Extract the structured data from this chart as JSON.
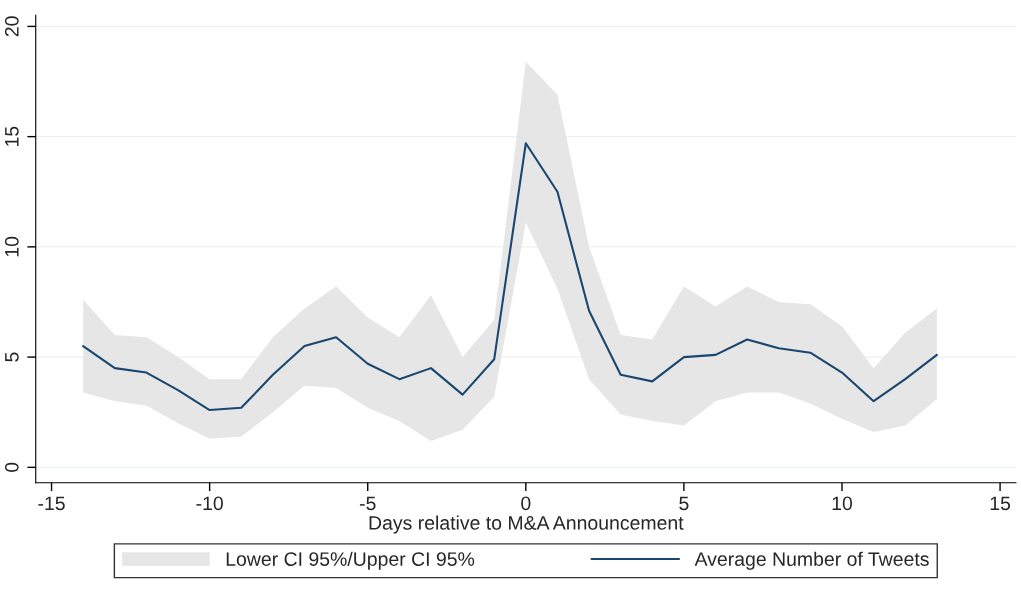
{
  "chart_data": {
    "type": "line",
    "xlabel": "Days relative to M&A Announcement",
    "annotations": [
      "Lower CI 95%/Upper CI 95%"
    ],
    "x": [
      -14,
      -13,
      -12,
      -11,
      -10,
      -9,
      -8,
      -7,
      -6,
      -5,
      -4,
      -3,
      -2,
      -1,
      0,
      1,
      2,
      3,
      4,
      5,
      6,
      7,
      8,
      9,
      10,
      11,
      12,
      13
    ],
    "series": [
      {
        "name": "Average Number of Tweets",
        "color": "#1a476f",
        "values": [
          5.5,
          4.5,
          4.3,
          3.5,
          2.6,
          2.7,
          4.2,
          5.5,
          5.9,
          4.7,
          4.0,
          4.5,
          3.3,
          4.9,
          14.7,
          12.5,
          7.1,
          4.2,
          3.9,
          5.0,
          5.1,
          5.8,
          5.4,
          5.2,
          4.3,
          3.0,
          4.0,
          5.1
        ],
        "lower": [
          3.4,
          3.0,
          2.8,
          2.0,
          1.3,
          1.4,
          2.5,
          3.7,
          3.6,
          2.7,
          2.1,
          1.2,
          1.7,
          3.2,
          11.1,
          8.1,
          4.0,
          2.4,
          2.1,
          1.9,
          3.0,
          3.4,
          3.4,
          2.9,
          2.2,
          1.6,
          1.9,
          3.1
        ],
        "upper": [
          7.6,
          6.0,
          5.9,
          5.0,
          4.0,
          4.0,
          5.9,
          7.2,
          8.2,
          6.8,
          5.9,
          7.8,
          5.0,
          6.7,
          18.4,
          16.9,
          10.0,
          6.0,
          5.8,
          8.2,
          7.3,
          8.2,
          7.5,
          7.4,
          6.4,
          4.5,
          6.1,
          7.2
        ]
      }
    ],
    "xlim": [
      -15.5,
      15.5
    ],
    "xticks": [
      -15,
      -10,
      -5,
      0,
      5,
      10,
      15
    ],
    "ylim": [
      -0.7,
      20.5
    ],
    "yticks": [
      0,
      5,
      10,
      15,
      20
    ],
    "grid": "y",
    "legend": "bottom",
    "marker": "none",
    "line_style": "solid"
  }
}
